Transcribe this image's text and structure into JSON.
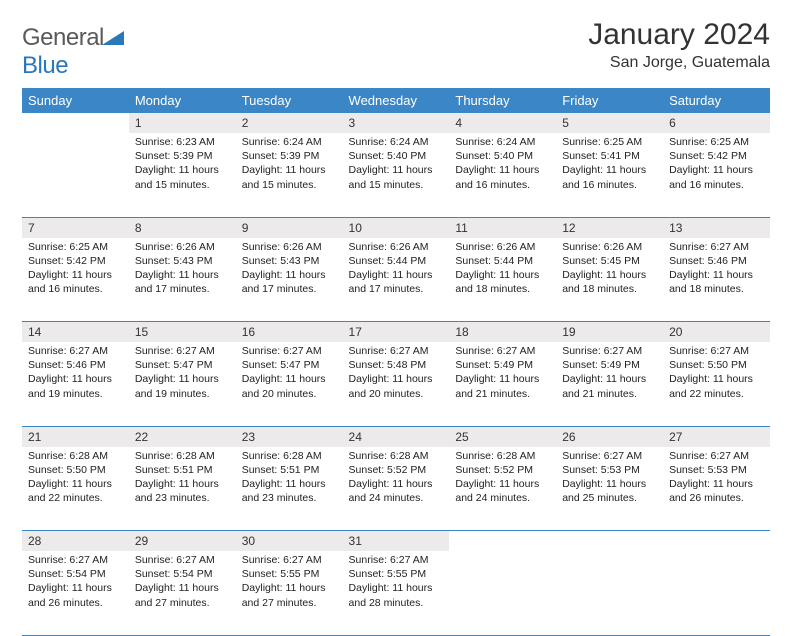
{
  "logo": {
    "text1": "General",
    "text2": "Blue"
  },
  "header": {
    "title": "January 2024",
    "location": "San Jorge, Guatemala"
  },
  "colors": {
    "header_bg": "#3b86c6",
    "header_text": "#ffffff",
    "daynum_bg": "#eceaea",
    "rule": "#3b86c6"
  },
  "weekdays": [
    "Sunday",
    "Monday",
    "Tuesday",
    "Wednesday",
    "Thursday",
    "Friday",
    "Saturday"
  ],
  "weeks": [
    [
      null,
      {
        "n": "1",
        "sr": "Sunrise: 6:23 AM",
        "ss": "Sunset: 5:39 PM",
        "dl1": "Daylight: 11 hours",
        "dl2": "and 15 minutes."
      },
      {
        "n": "2",
        "sr": "Sunrise: 6:24 AM",
        "ss": "Sunset: 5:39 PM",
        "dl1": "Daylight: 11 hours",
        "dl2": "and 15 minutes."
      },
      {
        "n": "3",
        "sr": "Sunrise: 6:24 AM",
        "ss": "Sunset: 5:40 PM",
        "dl1": "Daylight: 11 hours",
        "dl2": "and 15 minutes."
      },
      {
        "n": "4",
        "sr": "Sunrise: 6:24 AM",
        "ss": "Sunset: 5:40 PM",
        "dl1": "Daylight: 11 hours",
        "dl2": "and 16 minutes."
      },
      {
        "n": "5",
        "sr": "Sunrise: 6:25 AM",
        "ss": "Sunset: 5:41 PM",
        "dl1": "Daylight: 11 hours",
        "dl2": "and 16 minutes."
      },
      {
        "n": "6",
        "sr": "Sunrise: 6:25 AM",
        "ss": "Sunset: 5:42 PM",
        "dl1": "Daylight: 11 hours",
        "dl2": "and 16 minutes."
      }
    ],
    [
      {
        "n": "7",
        "sr": "Sunrise: 6:25 AM",
        "ss": "Sunset: 5:42 PM",
        "dl1": "Daylight: 11 hours",
        "dl2": "and 16 minutes."
      },
      {
        "n": "8",
        "sr": "Sunrise: 6:26 AM",
        "ss": "Sunset: 5:43 PM",
        "dl1": "Daylight: 11 hours",
        "dl2": "and 17 minutes."
      },
      {
        "n": "9",
        "sr": "Sunrise: 6:26 AM",
        "ss": "Sunset: 5:43 PM",
        "dl1": "Daylight: 11 hours",
        "dl2": "and 17 minutes."
      },
      {
        "n": "10",
        "sr": "Sunrise: 6:26 AM",
        "ss": "Sunset: 5:44 PM",
        "dl1": "Daylight: 11 hours",
        "dl2": "and 17 minutes."
      },
      {
        "n": "11",
        "sr": "Sunrise: 6:26 AM",
        "ss": "Sunset: 5:44 PM",
        "dl1": "Daylight: 11 hours",
        "dl2": "and 18 minutes."
      },
      {
        "n": "12",
        "sr": "Sunrise: 6:26 AM",
        "ss": "Sunset: 5:45 PM",
        "dl1": "Daylight: 11 hours",
        "dl2": "and 18 minutes."
      },
      {
        "n": "13",
        "sr": "Sunrise: 6:27 AM",
        "ss": "Sunset: 5:46 PM",
        "dl1": "Daylight: 11 hours",
        "dl2": "and 18 minutes."
      }
    ],
    [
      {
        "n": "14",
        "sr": "Sunrise: 6:27 AM",
        "ss": "Sunset: 5:46 PM",
        "dl1": "Daylight: 11 hours",
        "dl2": "and 19 minutes."
      },
      {
        "n": "15",
        "sr": "Sunrise: 6:27 AM",
        "ss": "Sunset: 5:47 PM",
        "dl1": "Daylight: 11 hours",
        "dl2": "and 19 minutes."
      },
      {
        "n": "16",
        "sr": "Sunrise: 6:27 AM",
        "ss": "Sunset: 5:47 PM",
        "dl1": "Daylight: 11 hours",
        "dl2": "and 20 minutes."
      },
      {
        "n": "17",
        "sr": "Sunrise: 6:27 AM",
        "ss": "Sunset: 5:48 PM",
        "dl1": "Daylight: 11 hours",
        "dl2": "and 20 minutes."
      },
      {
        "n": "18",
        "sr": "Sunrise: 6:27 AM",
        "ss": "Sunset: 5:49 PM",
        "dl1": "Daylight: 11 hours",
        "dl2": "and 21 minutes."
      },
      {
        "n": "19",
        "sr": "Sunrise: 6:27 AM",
        "ss": "Sunset: 5:49 PM",
        "dl1": "Daylight: 11 hours",
        "dl2": "and 21 minutes."
      },
      {
        "n": "20",
        "sr": "Sunrise: 6:27 AM",
        "ss": "Sunset: 5:50 PM",
        "dl1": "Daylight: 11 hours",
        "dl2": "and 22 minutes."
      }
    ],
    [
      {
        "n": "21",
        "sr": "Sunrise: 6:28 AM",
        "ss": "Sunset: 5:50 PM",
        "dl1": "Daylight: 11 hours",
        "dl2": "and 22 minutes."
      },
      {
        "n": "22",
        "sr": "Sunrise: 6:28 AM",
        "ss": "Sunset: 5:51 PM",
        "dl1": "Daylight: 11 hours",
        "dl2": "and 23 minutes."
      },
      {
        "n": "23",
        "sr": "Sunrise: 6:28 AM",
        "ss": "Sunset: 5:51 PM",
        "dl1": "Daylight: 11 hours",
        "dl2": "and 23 minutes."
      },
      {
        "n": "24",
        "sr": "Sunrise: 6:28 AM",
        "ss": "Sunset: 5:52 PM",
        "dl1": "Daylight: 11 hours",
        "dl2": "and 24 minutes."
      },
      {
        "n": "25",
        "sr": "Sunrise: 6:28 AM",
        "ss": "Sunset: 5:52 PM",
        "dl1": "Daylight: 11 hours",
        "dl2": "and 24 minutes."
      },
      {
        "n": "26",
        "sr": "Sunrise: 6:27 AM",
        "ss": "Sunset: 5:53 PM",
        "dl1": "Daylight: 11 hours",
        "dl2": "and 25 minutes."
      },
      {
        "n": "27",
        "sr": "Sunrise: 6:27 AM",
        "ss": "Sunset: 5:53 PM",
        "dl1": "Daylight: 11 hours",
        "dl2": "and 26 minutes."
      }
    ],
    [
      {
        "n": "28",
        "sr": "Sunrise: 6:27 AM",
        "ss": "Sunset: 5:54 PM",
        "dl1": "Daylight: 11 hours",
        "dl2": "and 26 minutes."
      },
      {
        "n": "29",
        "sr": "Sunrise: 6:27 AM",
        "ss": "Sunset: 5:54 PM",
        "dl1": "Daylight: 11 hours",
        "dl2": "and 27 minutes."
      },
      {
        "n": "30",
        "sr": "Sunrise: 6:27 AM",
        "ss": "Sunset: 5:55 PM",
        "dl1": "Daylight: 11 hours",
        "dl2": "and 27 minutes."
      },
      {
        "n": "31",
        "sr": "Sunrise: 6:27 AM",
        "ss": "Sunset: 5:55 PM",
        "dl1": "Daylight: 11 hours",
        "dl2": "and 28 minutes."
      },
      null,
      null,
      null
    ]
  ]
}
